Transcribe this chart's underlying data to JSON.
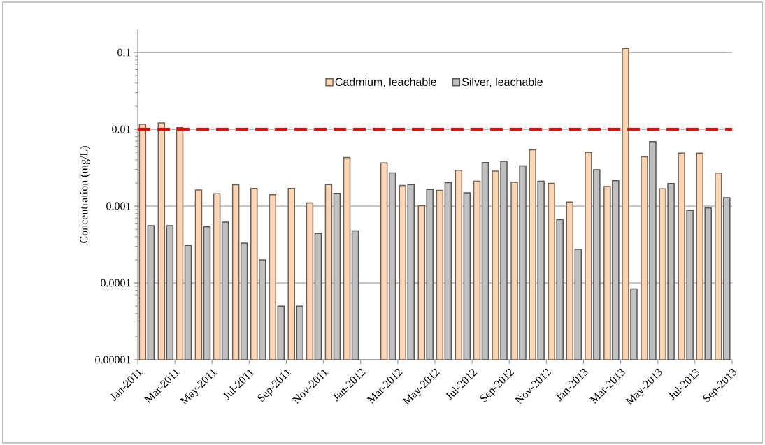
{
  "chart_data": {
    "type": "bar",
    "ylabel": "Concentration (mg/L)",
    "x": [
      "2011-01-16",
      "2011-02-15",
      "2011-03-16",
      "2011-04-16",
      "2011-05-16",
      "2011-06-16",
      "2011-07-16",
      "2011-08-16",
      "2011-09-16",
      "2011-10-16",
      "2011-11-16",
      "2011-12-16",
      "2012-01-16",
      "2012-02-15",
      "2012-03-16",
      "2012-04-16",
      "2012-05-16",
      "2012-06-16",
      "2012-07-16",
      "2012-08-16",
      "2012-09-16",
      "2012-10-16",
      "2012-11-16",
      "2012-12-16",
      "2013-01-16",
      "2013-02-15",
      "2013-03-16",
      "2013-04-16",
      "2013-05-16",
      "2013-06-16",
      "2013-07-16",
      "2013-08-16"
    ],
    "series": [
      {
        "name": "Cadmium, leachable",
        "color": "#fcd5b5",
        "values": [
          0.0116,
          0.0121,
          0.0105,
          0.00162,
          0.00145,
          0.0019,
          0.0017,
          0.00141,
          0.0017,
          0.0011,
          0.00191,
          0.0043,
          null,
          0.00364,
          0.00186,
          0.00101,
          0.0016,
          0.00293,
          0.0021,
          0.00285,
          0.00204,
          0.0054,
          0.00198,
          0.00113,
          0.00498,
          0.0018,
          0.113,
          0.00438,
          0.00168,
          0.0049,
          0.0049,
          0.00269
        ]
      },
      {
        "name": "Silver, leachable",
        "color": "#c0c0c0",
        "values": [
          0.000556,
          0.000556,
          0.000308,
          0.000537,
          0.000618,
          0.00033,
          0.0002,
          5e-05,
          5e-05,
          0.00044,
          0.00147,
          0.000477,
          null,
          0.00271,
          0.00191,
          0.00165,
          0.00202,
          0.00149,
          0.00369,
          0.00382,
          0.00334,
          0.0021,
          0.000667,
          0.000273,
          0.00297,
          0.00214,
          8.39e-05,
          0.0069,
          0.00197,
          0.00088,
          0.000946,
          0.00129
        ]
      }
    ],
    "log": "y",
    "xlim": [
      "2011-01",
      "2013-09"
    ],
    "xticks": [
      {
        "value": "2011-01",
        "label": "Jan-2011"
      },
      {
        "value": "2011-03",
        "label": "Mar-2011"
      },
      {
        "value": "2011-05",
        "label": "May-2011"
      },
      {
        "value": "2011-07",
        "label": "Jul-2011"
      },
      {
        "value": "2011-09",
        "label": "Sep-2011"
      },
      {
        "value": "2011-11",
        "label": "Nov-2011"
      },
      {
        "value": "2012-01",
        "label": "Jan-2012"
      },
      {
        "value": "2012-03",
        "label": "Mar-2012"
      },
      {
        "value": "2012-05",
        "label": "May-2012"
      },
      {
        "value": "2012-07",
        "label": "Jul-2012"
      },
      {
        "value": "2012-09",
        "label": "Sep-2012"
      },
      {
        "value": "2012-11",
        "label": "Nov-2012"
      },
      {
        "value": "2013-01",
        "label": "Jan-2013"
      },
      {
        "value": "2013-03",
        "label": "Mar-2013"
      },
      {
        "value": "2013-05",
        "label": "May-2013"
      },
      {
        "value": "2013-07",
        "label": "Jul-2013"
      },
      {
        "value": "2013-09",
        "label": "Sep-2013"
      }
    ],
    "ylim": [
      1e-05,
      0.2
    ],
    "yticks": [
      {
        "value": 1e-05,
        "label": "0.00001"
      },
      {
        "value": 0.0001,
        "label": "0.0001"
      },
      {
        "value": 0.001,
        "label": "0.001"
      },
      {
        "value": 0.01,
        "label": "0.01"
      },
      {
        "value": 0.1,
        "label": "0.1"
      }
    ],
    "grid": "y",
    "legend": "top",
    "ref_lines": [
      {
        "axis": "y",
        "value": 0.01,
        "color": "#ff0000",
        "line_style": "dashed"
      }
    ]
  }
}
